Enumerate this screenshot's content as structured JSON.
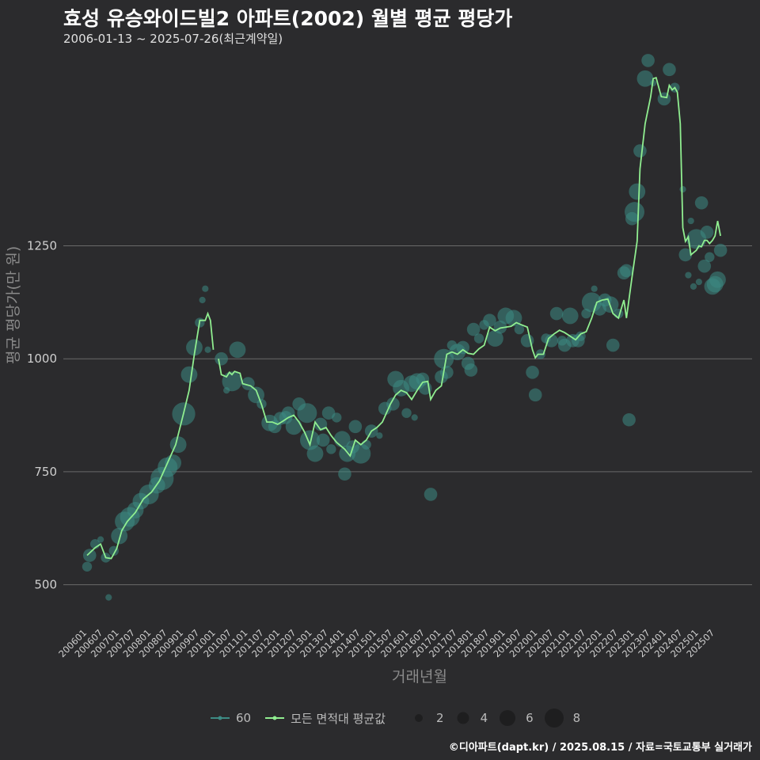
{
  "title": "효성 유승와이드빌2 아파트(2002) 월별 평균 평당가",
  "subtitle": "2006-01-13 ~ 2025-07-26(최근계약일)",
  "credit": "©디아파트(dapt.kr) / 2025.08.15 / 자료=국토교통부 실거래가",
  "legend": {
    "series_60": "60",
    "series_all": "모든 면적대 평균값",
    "sizes": [
      "2",
      "4",
      "6",
      "8"
    ]
  },
  "colors": {
    "line": "#90ee90",
    "point": "#3d8b84",
    "grid": "#6a6a6a",
    "bg": "#2b2b2d"
  },
  "chart_data": {
    "type": "line",
    "title": "효성 유승와이드빌2 아파트(2002) 월별 평균 평당가",
    "xlabel": "거래년월",
    "ylabel": "평균 평당가(만 원)",
    "ylim": [
      410,
      1680
    ],
    "yticks": [
      500,
      750,
      1000,
      1250
    ],
    "xlim": [
      2006.0,
      2025.667
    ],
    "xticks": [
      "200601",
      "200607",
      "200701",
      "200707",
      "200801",
      "200807",
      "200901",
      "200907",
      "201001",
      "201007",
      "201101",
      "201107",
      "201201",
      "201207",
      "201301",
      "201307",
      "201401",
      "201407",
      "201501",
      "201507",
      "201601",
      "201607",
      "201701",
      "201707",
      "201801",
      "201807",
      "201901",
      "201907",
      "202001",
      "202007",
      "202101",
      "202107",
      "202201",
      "202207",
      "202301",
      "202307",
      "202401",
      "202407",
      "202501",
      "202507"
    ],
    "line_segments": [
      [
        [
          2006.0,
          565
        ],
        [
          2006.25,
          582
        ],
        [
          2006.42,
          590
        ],
        [
          2006.58,
          560
        ],
        [
          2006.75,
          558
        ],
        [
          2006.92,
          580
        ],
        [
          2007.08,
          620
        ],
        [
          2007.25,
          640
        ],
        [
          2007.5,
          660
        ],
        [
          2007.75,
          690
        ],
        [
          2008.0,
          705
        ],
        [
          2008.25,
          730
        ],
        [
          2008.5,
          770
        ],
        [
          2008.75,
          810
        ],
        [
          2009.0,
          880
        ],
        [
          2009.17,
          930
        ],
        [
          2009.33,
          1010
        ],
        [
          2009.5,
          1085
        ],
        [
          2009.67,
          1085
        ],
        [
          2009.75,
          1100
        ],
        [
          2009.83,
          1085
        ],
        [
          2009.92,
          1020
        ]
      ],
      [
        [
          2010.08,
          1000
        ],
        [
          2010.17,
          965
        ],
        [
          2010.33,
          960
        ],
        [
          2010.42,
          970
        ],
        [
          2010.5,
          965
        ],
        [
          2010.58,
          972
        ],
        [
          2010.75,
          968
        ],
        [
          2010.83,
          945
        ],
        [
          2011.08,
          940
        ],
        [
          2011.25,
          930
        ],
        [
          2011.42,
          898
        ],
        [
          2011.58,
          860
        ],
        [
          2011.75,
          860
        ],
        [
          2011.92,
          855
        ],
        [
          2012.08,
          862
        ],
        [
          2012.25,
          870
        ],
        [
          2012.42,
          875
        ],
        [
          2012.58,
          860
        ],
        [
          2012.75,
          838
        ],
        [
          2012.92,
          810
        ],
        [
          2013.08,
          860
        ],
        [
          2013.25,
          843
        ],
        [
          2013.42,
          848
        ],
        [
          2013.58,
          830
        ],
        [
          2013.75,
          815
        ],
        [
          2014.0,
          800
        ],
        [
          2014.17,
          785
        ],
        [
          2014.33,
          820
        ],
        [
          2014.5,
          810
        ],
        [
          2014.67,
          820
        ],
        [
          2014.83,
          840
        ],
        [
          2015.0,
          848
        ],
        [
          2015.17,
          860
        ],
        [
          2015.42,
          900
        ],
        [
          2015.58,
          920
        ],
        [
          2015.75,
          930
        ],
        [
          2015.92,
          925
        ],
        [
          2016.08,
          910
        ],
        [
          2016.25,
          930
        ],
        [
          2016.42,
          948
        ],
        [
          2016.58,
          950
        ],
        [
          2016.67,
          910
        ],
        [
          2016.83,
          930
        ],
        [
          2017.0,
          940
        ],
        [
          2017.17,
          1010
        ],
        [
          2017.33,
          1015
        ],
        [
          2017.5,
          1010
        ],
        [
          2017.67,
          1020
        ],
        [
          2017.83,
          1012
        ],
        [
          2018.0,
          1010
        ],
        [
          2018.17,
          1022
        ],
        [
          2018.33,
          1030
        ],
        [
          2018.5,
          1070
        ],
        [
          2018.67,
          1062
        ],
        [
          2018.83,
          1068
        ],
        [
          2019.0,
          1070
        ],
        [
          2019.17,
          1072
        ],
        [
          2019.33,
          1080
        ],
        [
          2019.5,
          1075
        ],
        [
          2019.67,
          1070
        ],
        [
          2019.83,
          1020
        ],
        [
          2019.92,
          1002
        ],
        [
          2020.0,
          1010
        ],
        [
          2020.17,
          1010
        ],
        [
          2020.33,
          1045
        ],
        [
          2020.5,
          1055
        ],
        [
          2020.67,
          1063
        ],
        [
          2020.83,
          1058
        ],
        [
          2021.0,
          1050
        ],
        [
          2021.17,
          1042
        ],
        [
          2021.33,
          1055
        ],
        [
          2021.5,
          1060
        ],
        [
          2021.67,
          1090
        ],
        [
          2021.83,
          1125
        ],
        [
          2022.0,
          1130
        ],
        [
          2022.17,
          1132
        ],
        [
          2022.33,
          1100
        ],
        [
          2022.5,
          1090
        ],
        [
          2022.67,
          1130
        ],
        [
          2022.75,
          1090
        ],
        [
          2022.92,
          1180
        ],
        [
          2023.08,
          1260
        ],
        [
          2023.17,
          1420
        ],
        [
          2023.33,
          1520
        ],
        [
          2023.5,
          1580
        ],
        [
          2023.58,
          1620
        ],
        [
          2023.67,
          1622
        ],
        [
          2023.83,
          1580
        ],
        [
          2024.0,
          1578
        ],
        [
          2024.08,
          1605
        ],
        [
          2024.17,
          1595
        ],
        [
          2024.25,
          1600
        ],
        [
          2024.33,
          1590
        ],
        [
          2024.42,
          1520
        ],
        [
          2024.5,
          1290
        ],
        [
          2024.58,
          1260
        ],
        [
          2024.67,
          1270
        ],
        [
          2024.75,
          1230
        ],
        [
          2024.92,
          1240
        ],
        [
          2025.0,
          1250
        ],
        [
          2025.08,
          1248
        ],
        [
          2025.17,
          1262
        ],
        [
          2025.25,
          1262
        ],
        [
          2025.33,
          1255
        ],
        [
          2025.42,
          1262
        ],
        [
          2025.5,
          1272
        ],
        [
          2025.58,
          1305
        ],
        [
          2025.67,
          1272
        ]
      ]
    ],
    "points": [
      {
        "x": 2006.0,
        "y": 540,
        "s": 2
      },
      {
        "x": 2006.08,
        "y": 565,
        "s": 3
      },
      {
        "x": 2006.25,
        "y": 590,
        "s": 2
      },
      {
        "x": 2006.42,
        "y": 600,
        "s": 1
      },
      {
        "x": 2006.58,
        "y": 560,
        "s": 2
      },
      {
        "x": 2006.67,
        "y": 472,
        "s": 1
      },
      {
        "x": 2006.83,
        "y": 575,
        "s": 2
      },
      {
        "x": 2007.0,
        "y": 608,
        "s": 4
      },
      {
        "x": 2007.17,
        "y": 640,
        "s": 5
      },
      {
        "x": 2007.33,
        "y": 650,
        "s": 5
      },
      {
        "x": 2007.5,
        "y": 665,
        "s": 4
      },
      {
        "x": 2007.67,
        "y": 685,
        "s": 4
      },
      {
        "x": 2007.92,
        "y": 700,
        "s": 5
      },
      {
        "x": 2008.17,
        "y": 720,
        "s": 4
      },
      {
        "x": 2008.33,
        "y": 735,
        "s": 6
      },
      {
        "x": 2008.5,
        "y": 760,
        "s": 5
      },
      {
        "x": 2008.67,
        "y": 770,
        "s": 4
      },
      {
        "x": 2008.83,
        "y": 810,
        "s": 4
      },
      {
        "x": 2009.0,
        "y": 878,
        "s": 6
      },
      {
        "x": 2009.17,
        "y": 965,
        "s": 4
      },
      {
        "x": 2009.33,
        "y": 1025,
        "s": 4
      },
      {
        "x": 2009.5,
        "y": 1080,
        "s": 2
      },
      {
        "x": 2009.58,
        "y": 1130,
        "s": 1
      },
      {
        "x": 2009.67,
        "y": 1155,
        "s": 1
      },
      {
        "x": 2009.75,
        "y": 1020,
        "s": 1
      },
      {
        "x": 2010.17,
        "y": 1000,
        "s": 3
      },
      {
        "x": 2010.33,
        "y": 930,
        "s": 1
      },
      {
        "x": 2010.5,
        "y": 950,
        "s": 5
      },
      {
        "x": 2010.67,
        "y": 1020,
        "s": 4
      },
      {
        "x": 2011.0,
        "y": 945,
        "s": 3
      },
      {
        "x": 2011.25,
        "y": 920,
        "s": 4
      },
      {
        "x": 2011.42,
        "y": 900,
        "s": 2
      },
      {
        "x": 2011.67,
        "y": 858,
        "s": 4
      },
      {
        "x": 2011.83,
        "y": 850,
        "s": 3
      },
      {
        "x": 2012.0,
        "y": 868,
        "s": 3
      },
      {
        "x": 2012.17,
        "y": 870,
        "s": 3
      },
      {
        "x": 2012.25,
        "y": 880,
        "s": 3
      },
      {
        "x": 2012.42,
        "y": 850,
        "s": 4
      },
      {
        "x": 2012.58,
        "y": 900,
        "s": 3
      },
      {
        "x": 2012.83,
        "y": 880,
        "s": 5
      },
      {
        "x": 2012.92,
        "y": 820,
        "s": 5
      },
      {
        "x": 2013.08,
        "y": 790,
        "s": 4
      },
      {
        "x": 2013.25,
        "y": 855,
        "s": 3
      },
      {
        "x": 2013.33,
        "y": 820,
        "s": 3
      },
      {
        "x": 2013.5,
        "y": 880,
        "s": 3
      },
      {
        "x": 2013.58,
        "y": 800,
        "s": 2
      },
      {
        "x": 2013.75,
        "y": 870,
        "s": 2
      },
      {
        "x": 2013.92,
        "y": 822,
        "s": 4
      },
      {
        "x": 2014.0,
        "y": 745,
        "s": 3
      },
      {
        "x": 2014.08,
        "y": 790,
        "s": 4
      },
      {
        "x": 2014.25,
        "y": 805,
        "s": 3
      },
      {
        "x": 2014.33,
        "y": 850,
        "s": 3
      },
      {
        "x": 2014.5,
        "y": 790,
        "s": 5
      },
      {
        "x": 2014.67,
        "y": 810,
        "s": 2
      },
      {
        "x": 2014.83,
        "y": 840,
        "s": 3
      },
      {
        "x": 2015.08,
        "y": 830,
        "s": 1
      },
      {
        "x": 2015.25,
        "y": 890,
        "s": 3
      },
      {
        "x": 2015.5,
        "y": 900,
        "s": 3
      },
      {
        "x": 2015.58,
        "y": 955,
        "s": 4
      },
      {
        "x": 2015.75,
        "y": 935,
        "s": 4
      },
      {
        "x": 2015.92,
        "y": 880,
        "s": 2
      },
      {
        "x": 2016.08,
        "y": 945,
        "s": 4
      },
      {
        "x": 2016.17,
        "y": 870,
        "s": 1
      },
      {
        "x": 2016.25,
        "y": 950,
        "s": 4
      },
      {
        "x": 2016.42,
        "y": 955,
        "s": 3
      },
      {
        "x": 2016.5,
        "y": 935,
        "s": 3
      },
      {
        "x": 2016.67,
        "y": 700,
        "s": 3
      },
      {
        "x": 2017.0,
        "y": 960,
        "s": 3
      },
      {
        "x": 2017.08,
        "y": 1000,
        "s": 5
      },
      {
        "x": 2017.17,
        "y": 970,
        "s": 3
      },
      {
        "x": 2017.33,
        "y": 1030,
        "s": 2
      },
      {
        "x": 2017.5,
        "y": 1015,
        "s": 4
      },
      {
        "x": 2017.67,
        "y": 1025,
        "s": 3
      },
      {
        "x": 2017.83,
        "y": 990,
        "s": 3
      },
      {
        "x": 2017.92,
        "y": 975,
        "s": 3
      },
      {
        "x": 2018.0,
        "y": 1065,
        "s": 3
      },
      {
        "x": 2018.17,
        "y": 1045,
        "s": 2
      },
      {
        "x": 2018.33,
        "y": 1075,
        "s": 2
      },
      {
        "x": 2018.5,
        "y": 1085,
        "s": 3
      },
      {
        "x": 2018.67,
        "y": 1045,
        "s": 4
      },
      {
        "x": 2018.83,
        "y": 1070,
        "s": 3
      },
      {
        "x": 2019.0,
        "y": 1095,
        "s": 4
      },
      {
        "x": 2019.25,
        "y": 1090,
        "s": 4
      },
      {
        "x": 2019.42,
        "y": 1065,
        "s": 2
      },
      {
        "x": 2019.67,
        "y": 1040,
        "s": 3
      },
      {
        "x": 2019.83,
        "y": 970,
        "s": 3
      },
      {
        "x": 2019.92,
        "y": 920,
        "s": 3
      },
      {
        "x": 2020.08,
        "y": 1010,
        "s": 2
      },
      {
        "x": 2020.25,
        "y": 1045,
        "s": 2
      },
      {
        "x": 2020.42,
        "y": 1040,
        "s": 3
      },
      {
        "x": 2020.58,
        "y": 1100,
        "s": 3
      },
      {
        "x": 2020.75,
        "y": 1040,
        "s": 2
      },
      {
        "x": 2020.83,
        "y": 1030,
        "s": 3
      },
      {
        "x": 2021.0,
        "y": 1095,
        "s": 4
      },
      {
        "x": 2021.08,
        "y": 1040,
        "s": 3
      },
      {
        "x": 2021.25,
        "y": 1040,
        "s": 3
      },
      {
        "x": 2021.33,
        "y": 1050,
        "s": 2
      },
      {
        "x": 2021.5,
        "y": 1100,
        "s": 2
      },
      {
        "x": 2021.67,
        "y": 1125,
        "s": 5
      },
      {
        "x": 2021.75,
        "y": 1155,
        "s": 1
      },
      {
        "x": 2021.92,
        "y": 1110,
        "s": 3
      },
      {
        "x": 2022.08,
        "y": 1130,
        "s": 3
      },
      {
        "x": 2022.25,
        "y": 1120,
        "s": 4
      },
      {
        "x": 2022.33,
        "y": 1030,
        "s": 3
      },
      {
        "x": 2022.5,
        "y": 1100,
        "s": 2
      },
      {
        "x": 2022.67,
        "y": 1190,
        "s": 3
      },
      {
        "x": 2022.75,
        "y": 1195,
        "s": 3
      },
      {
        "x": 2022.83,
        "y": 865,
        "s": 3
      },
      {
        "x": 2022.92,
        "y": 1310,
        "s": 3
      },
      {
        "x": 2023.0,
        "y": 1325,
        "s": 5
      },
      {
        "x": 2023.08,
        "y": 1370,
        "s": 4
      },
      {
        "x": 2023.17,
        "y": 1460,
        "s": 3
      },
      {
        "x": 2023.33,
        "y": 1620,
        "s": 4
      },
      {
        "x": 2023.42,
        "y": 1660,
        "s": 3
      },
      {
        "x": 2023.58,
        "y": 1610,
        "s": 1
      },
      {
        "x": 2023.92,
        "y": 1575,
        "s": 3
      },
      {
        "x": 2024.08,
        "y": 1640,
        "s": 3
      },
      {
        "x": 2024.25,
        "y": 1600,
        "s": 2
      },
      {
        "x": 2024.5,
        "y": 1375,
        "s": 1
      },
      {
        "x": 2024.58,
        "y": 1230,
        "s": 3
      },
      {
        "x": 2024.67,
        "y": 1185,
        "s": 1
      },
      {
        "x": 2024.75,
        "y": 1305,
        "s": 1
      },
      {
        "x": 2024.83,
        "y": 1160,
        "s": 1
      },
      {
        "x": 2024.92,
        "y": 1265,
        "s": 5
      },
      {
        "x": 2025.0,
        "y": 1170,
        "s": 1
      },
      {
        "x": 2025.08,
        "y": 1345,
        "s": 3
      },
      {
        "x": 2025.17,
        "y": 1205,
        "s": 3
      },
      {
        "x": 2025.25,
        "y": 1280,
        "s": 3
      },
      {
        "x": 2025.33,
        "y": 1225,
        "s": 2
      },
      {
        "x": 2025.42,
        "y": 1160,
        "s": 4
      },
      {
        "x": 2025.5,
        "y": 1165,
        "s": 4
      },
      {
        "x": 2025.58,
        "y": 1175,
        "s": 4
      },
      {
        "x": 2025.67,
        "y": 1240,
        "s": 3
      }
    ]
  },
  "axis": {
    "xlabel": "거래년월",
    "ylabel": "평균 평당가(만 원)"
  }
}
